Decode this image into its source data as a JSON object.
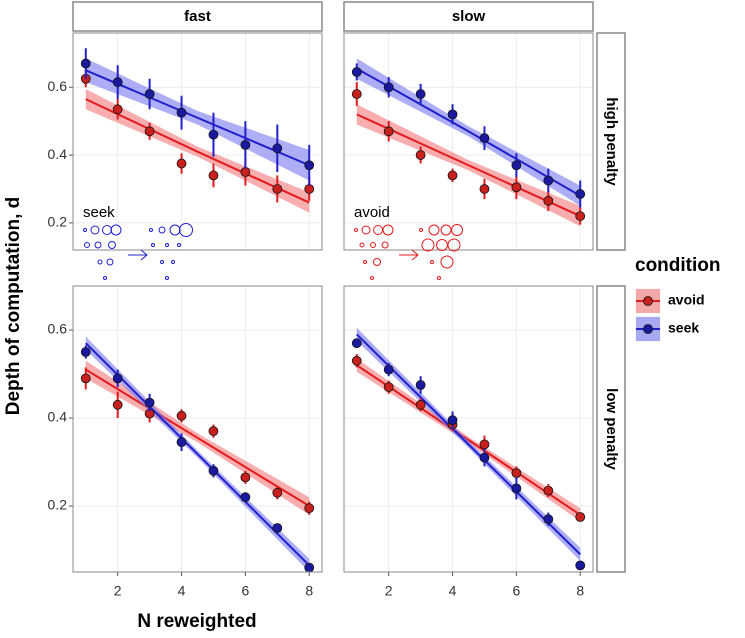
{
  "chart_data": {
    "type": "facet_scatter_fit",
    "xlabel": "N reweighted",
    "ylabel": "Depth of computation, d",
    "legend_title": "condition",
    "columns": [
      "fast",
      "slow"
    ],
    "rows": [
      "high penalty",
      "low penalty"
    ],
    "series": [
      {
        "name": "avoid",
        "color": "#e41a1c",
        "point_color": "#c8201c",
        "ribbon_color": "#f4787a"
      },
      {
        "name": "seek",
        "color": "#2020cc",
        "point_color": "#1a1aa0",
        "ribbon_color": "#7878f0"
      }
    ],
    "x": [
      1,
      2,
      3,
      4,
      5,
      6,
      7,
      8
    ],
    "xlim": [
      0.6,
      8.4
    ],
    "xticks": [
      2,
      4,
      6,
      8
    ],
    "fit_x": [
      1,
      4.5,
      8
    ],
    "panels": [
      {
        "ylim": [
          0.12,
          0.76
        ],
        "yticks": [
          0.2,
          0.4,
          0.6
        ],
        "annotation": "seek",
        "annotation_series": 1,
        "series": [
          {
            "values": [
              0.625,
              0.535,
              0.47,
              0.375,
              0.34,
              0.35,
              0.3,
              0.3
            ],
            "errors": [
              0.025,
              0.03,
              0.025,
              0.03,
              0.035,
              0.04,
              0.04,
              0.035
            ],
            "fit": [
              0.565,
              0.41,
              0.26
            ],
            "fit_lower": [
              0.535,
              0.395,
              0.23
            ],
            "fit_upper": [
              0.595,
              0.425,
              0.29
            ]
          },
          {
            "values": [
              0.67,
              0.615,
              0.58,
              0.525,
              0.46,
              0.43,
              0.42,
              0.37
            ],
            "errors": [
              0.045,
              0.05,
              0.045,
              0.05,
              0.065,
              0.07,
              0.07,
              0.06
            ],
            "fit": [
              0.65,
              0.51,
              0.37
            ],
            "fit_lower": [
              0.615,
              0.49,
              0.325
            ],
            "fit_upper": [
              0.685,
              0.53,
              0.415
            ]
          }
        ]
      },
      {
        "ylim": [
          0.12,
          0.76
        ],
        "yticks": [
          0.2,
          0.4,
          0.6
        ],
        "annotation": "avoid",
        "annotation_series": 0,
        "series": [
          {
            "values": [
              0.58,
              0.47,
              0.4,
              0.34,
              0.3,
              0.305,
              0.265,
              0.22
            ],
            "errors": [
              0.035,
              0.03,
              0.025,
              0.02,
              0.03,
              0.035,
              0.03,
              0.025
            ],
            "fit": [
              0.52,
              0.37,
              0.22
            ],
            "fit_lower": [
              0.49,
              0.355,
              0.19
            ],
            "fit_upper": [
              0.55,
              0.385,
              0.25
            ]
          },
          {
            "values": [
              0.645,
              0.6,
              0.58,
              0.52,
              0.45,
              0.37,
              0.325,
              0.285
            ],
            "errors": [
              0.025,
              0.03,
              0.03,
              0.03,
              0.035,
              0.035,
              0.035,
              0.04
            ],
            "fit": [
              0.655,
              0.47,
              0.28
            ],
            "fit_lower": [
              0.625,
              0.455,
              0.25
            ],
            "fit_upper": [
              0.685,
              0.485,
              0.31
            ]
          }
        ]
      },
      {
        "ylim": [
          0.05,
          0.7
        ],
        "yticks": [
          0.2,
          0.4,
          0.6
        ],
        "series": [
          {
            "values": [
              0.49,
              0.43,
              0.41,
              0.405,
              0.37,
              0.265,
              0.23,
              0.195
            ],
            "errors": [
              0.025,
              0.03,
              0.02,
              0.015,
              0.015,
              0.015,
              0.015,
              0.015
            ],
            "fit": [
              0.51,
              0.355,
              0.2
            ],
            "fit_lower": [
              0.49,
              0.345,
              0.18
            ],
            "fit_upper": [
              0.53,
              0.365,
              0.22
            ]
          },
          {
            "values": [
              0.55,
              0.49,
              0.435,
              0.345,
              0.28,
              0.22,
              0.15,
              0.06
            ],
            "errors": [
              0.015,
              0.02,
              0.02,
              0.02,
              0.015,
              0.01,
              0.01,
              0.01
            ],
            "fit": [
              0.57,
              0.318,
              0.065
            ],
            "fit_lower": [
              0.555,
              0.31,
              0.05
            ],
            "fit_upper": [
              0.585,
              0.326,
              0.08
            ]
          }
        ]
      },
      {
        "ylim": [
          0.05,
          0.7
        ],
        "yticks": [
          0.2,
          0.4,
          0.6
        ],
        "series": [
          {
            "values": [
              0.53,
              0.47,
              0.43,
              0.385,
              0.34,
              0.275,
              0.235,
              0.175
            ],
            "errors": [
              0.015,
              0.015,
              0.015,
              0.015,
              0.02,
              0.015,
              0.015,
              0.01
            ],
            "fit": [
              0.52,
              0.35,
              0.18
            ],
            "fit_lower": [
              0.505,
              0.343,
              0.165
            ],
            "fit_upper": [
              0.535,
              0.357,
              0.195
            ]
          },
          {
            "values": [
              0.57,
              0.51,
              0.475,
              0.395,
              0.31,
              0.24,
              0.17,
              0.065
            ],
            "errors": [
              0.01,
              0.015,
              0.02,
              0.02,
              0.02,
              0.025,
              0.015,
              0.01
            ],
            "fit": [
              0.59,
              0.34,
              0.09
            ],
            "fit_lower": [
              0.575,
              0.332,
              0.075
            ],
            "fit_upper": [
              0.605,
              0.348,
              0.105
            ]
          }
        ]
      }
    ]
  }
}
